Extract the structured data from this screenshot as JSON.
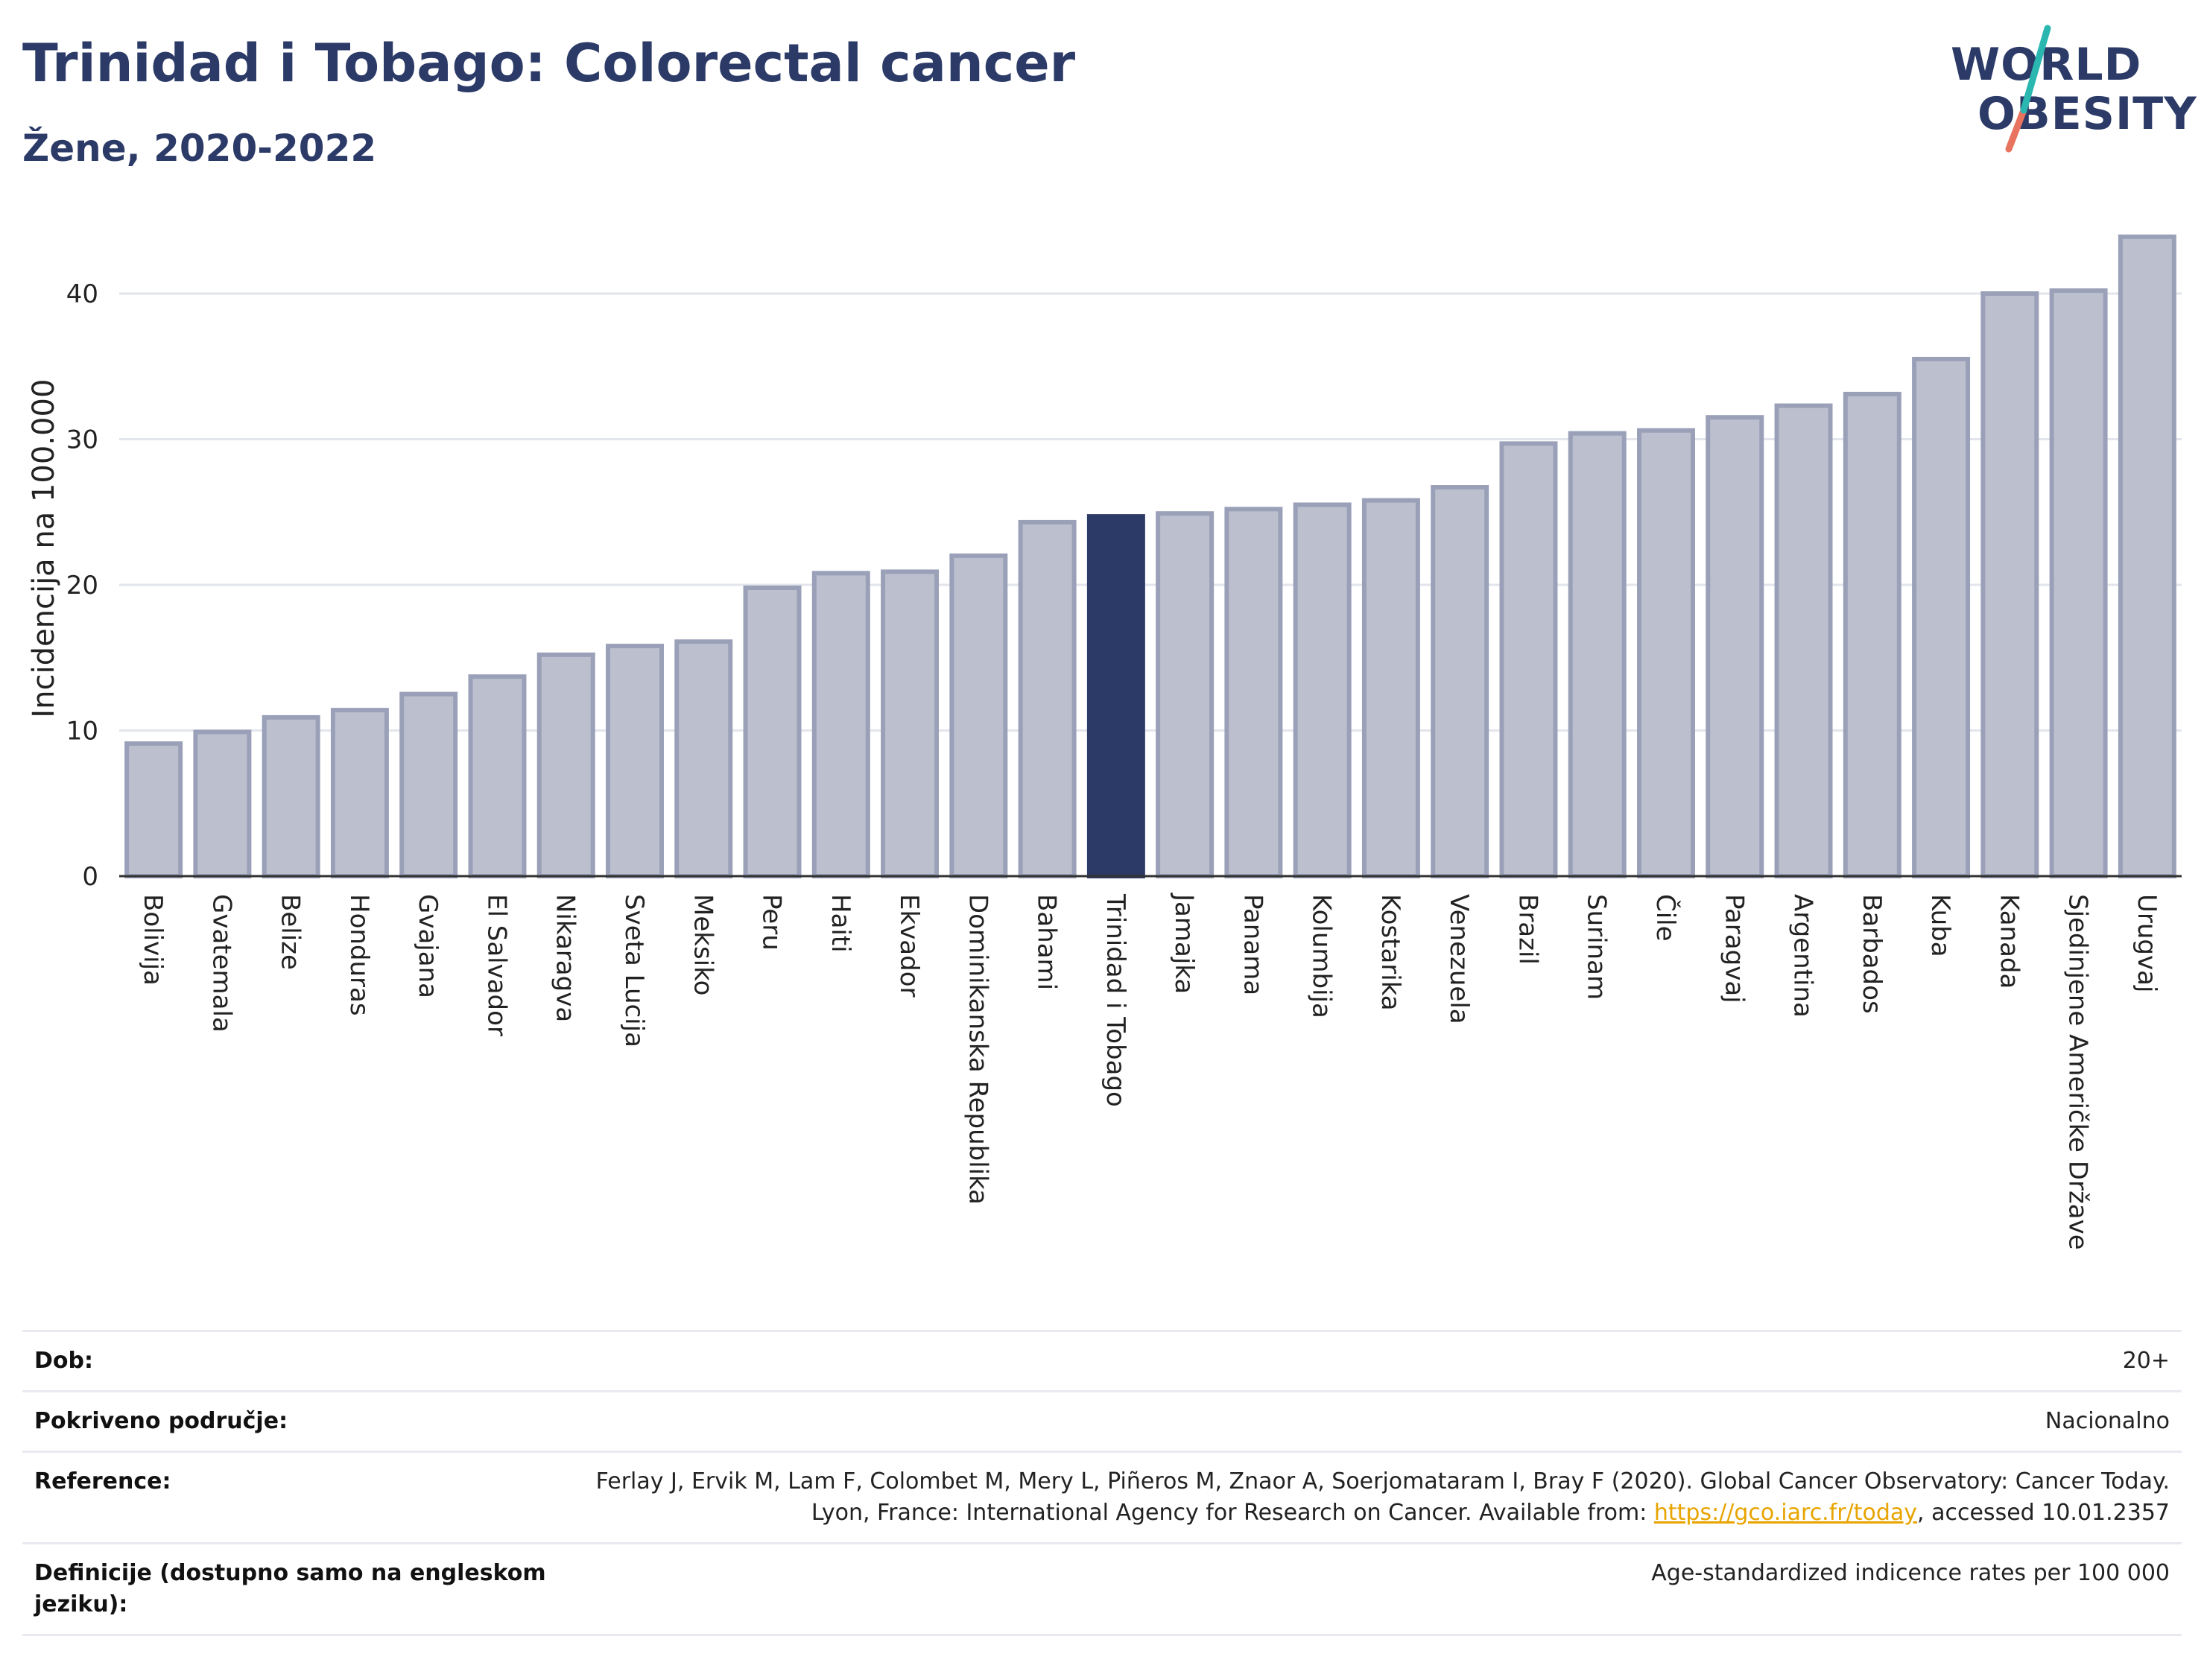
{
  "header": {
    "title": "Trinidad i Tobago: Colorectal cancer",
    "subtitle": "Žene, 2020-2022"
  },
  "logo": {
    "line1": "WORLD",
    "line2": "OBESITY"
  },
  "colors": {
    "bar": "#bcc0ce",
    "bar_stroke": "#9aa0b8",
    "highlight": "#2b3a67",
    "grid": "#e3e5ec",
    "axis": "#333333"
  },
  "chart_data": {
    "type": "bar",
    "ylabel": "Incidencija na 100.000",
    "ylim": [
      0,
      45
    ],
    "yticks": [
      0,
      10,
      20,
      30,
      40
    ],
    "highlight": "Trinidad i Tobago",
    "categories": [
      "Bolivija",
      "Gvatemala",
      "Belize",
      "Honduras",
      "Gvajana",
      "El Salvador",
      "Nikaragva",
      "Sveta Lucija",
      "Meksiko",
      "Peru",
      "Haiti",
      "Ekvador",
      "Dominikanska Republika",
      "Bahami",
      "Trinidad i Tobago",
      "Jamajka",
      "Panama",
      "Kolumbija",
      "Kostarika",
      "Venezuela",
      "Brazil",
      "Surinam",
      "Čile",
      "Paragvaj",
      "Argentina",
      "Barbados",
      "Kuba",
      "Kanada",
      "Sjedinjene Američke Države",
      "Urugvaj"
    ],
    "values": [
      9.1,
      9.9,
      10.9,
      11.4,
      12.5,
      13.7,
      15.2,
      15.8,
      16.1,
      19.8,
      20.8,
      20.9,
      22.0,
      24.3,
      24.7,
      24.9,
      25.2,
      25.5,
      25.8,
      26.7,
      29.7,
      30.4,
      30.6,
      31.5,
      32.3,
      33.1,
      35.5,
      40.0,
      40.2,
      43.9
    ]
  },
  "meta": {
    "age_label": "Dob:",
    "age_value": "20+",
    "coverage_label": "Pokriveno područje:",
    "coverage_value": "Nacionalno",
    "reference_label": "Reference:",
    "reference_text_1": "Ferlay J, Ervik M, Lam F, Colombet M, Mery L, Piñeros M, Znaor A, Soerjomataram I, Bray F (2020). Global Cancer Observatory: Cancer Today. Lyon, France: International Agency for Research on Cancer. Available from: ",
    "reference_link": "https://gco.iarc.fr/today",
    "reference_text_2": ", accessed 10.01.2357",
    "definitions_label": "Definicije (dostupno samo na engleskom jeziku):",
    "definitions_value": "Age-standardized indicence rates per 100 000"
  }
}
